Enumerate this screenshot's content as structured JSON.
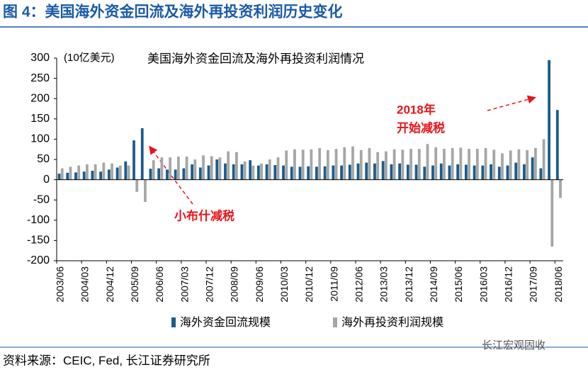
{
  "header": {
    "title": "图 4：美国海外资金回流及海外再投资利润历史变化"
  },
  "chart_data": {
    "type": "bar",
    "title": "美国海外资金回流及海外再投资利润情况",
    "unit_label": "(10亿美元)",
    "annotations": [
      "小布什减税",
      "2018年",
      "开始减税"
    ],
    "categories": [
      "2003/06",
      null,
      null,
      "2004/03",
      null,
      null,
      "2004/12",
      null,
      null,
      "2005/09",
      null,
      null,
      "2006/06",
      null,
      null,
      "2007/03",
      null,
      null,
      "2007/12",
      null,
      null,
      "2008/09",
      null,
      null,
      "2009/06",
      null,
      null,
      "2010/03",
      null,
      null,
      "2010/12",
      null,
      null,
      "2011/09",
      null,
      null,
      "2012/06",
      null,
      null,
      "2013/03",
      null,
      null,
      "2013/12",
      null,
      null,
      "2014/09",
      null,
      null,
      "2015/06",
      null,
      null,
      "2016/03",
      null,
      null,
      "2016/12",
      null,
      null,
      "2017/09",
      null,
      null,
      "2018/06"
    ],
    "series": [
      {
        "name": "海外资金回流规模",
        "color": "#1b5c8c",
        "values": [
          15,
          17,
          18,
          20,
          22,
          20,
          25,
          30,
          45,
          97,
          127,
          27,
          28,
          25,
          25,
          28,
          38,
          30,
          35,
          50,
          40,
          38,
          38,
          48,
          35,
          38,
          36,
          35,
          32,
          32,
          33,
          32,
          33,
          35,
          35,
          37,
          40,
          42,
          40,
          46,
          38,
          40,
          37,
          37,
          32,
          35,
          40,
          35,
          38,
          37,
          35,
          35,
          38,
          32,
          35,
          42,
          38,
          55,
          28,
          295,
          172
        ]
      },
      {
        "name": "海外再投资利润规模",
        "color": "#a6a6a6",
        "values": [
          28,
          32,
          35,
          38,
          38,
          42,
          40,
          35,
          35,
          -30,
          -55,
          48,
          55,
          55,
          57,
          57,
          50,
          60,
          58,
          55,
          70,
          68,
          45,
          35,
          40,
          50,
          55,
          72,
          75,
          74,
          75,
          78,
          73,
          76,
          80,
          82,
          73,
          78,
          68,
          70,
          75,
          74,
          76,
          76,
          88,
          80,
          76,
          78,
          79,
          76,
          76,
          78,
          74,
          65,
          72,
          75,
          73,
          78,
          100,
          -165,
          -45
        ]
      }
    ],
    "ylim": [
      -200,
      300
    ],
    "yticks": [
      -200,
      -150,
      -100,
      -50,
      0,
      50,
      100,
      150,
      200,
      250,
      300
    ]
  },
  "footer": {
    "source": "资料来源：CEIC, Fed, 长江证券研究所",
    "watermark": "长江宏观固收"
  }
}
